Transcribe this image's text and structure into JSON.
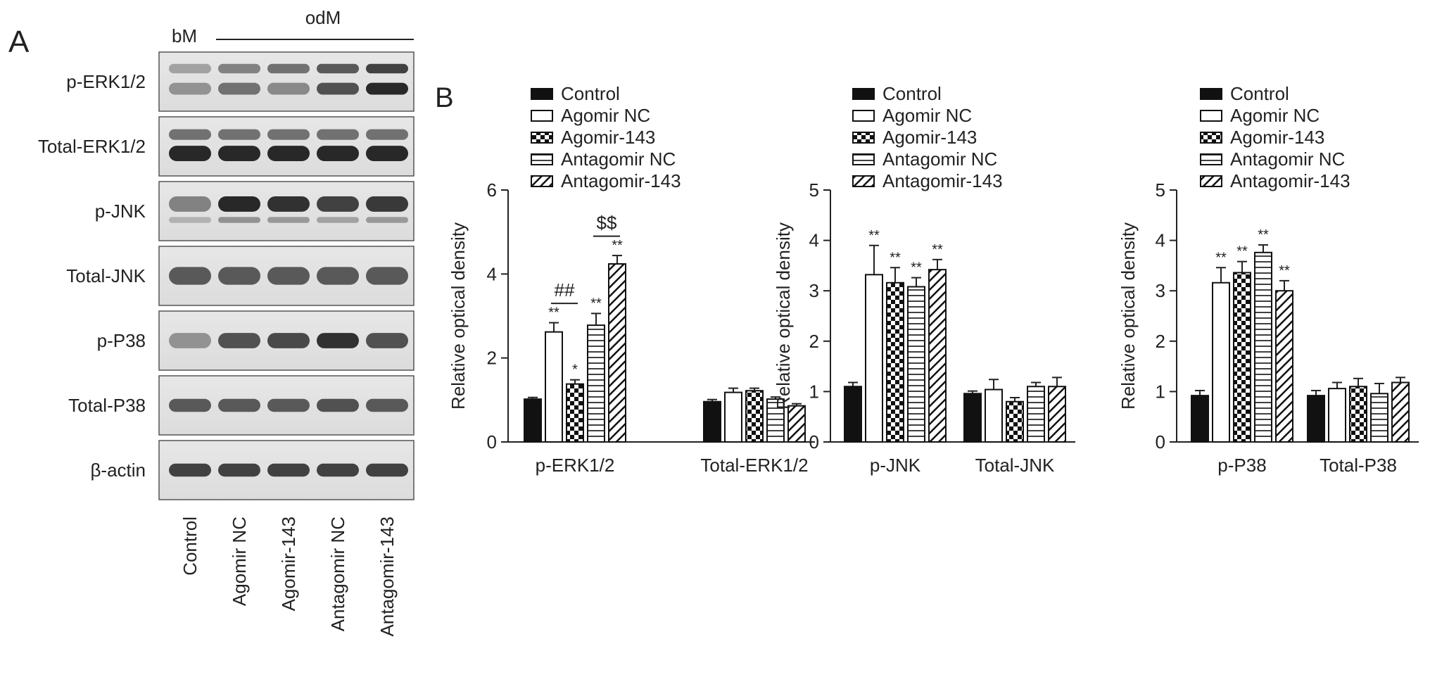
{
  "panel_a": {
    "label": "A",
    "header_single": "bM",
    "header_group": "odM",
    "rows": [
      "p-ERK1/2",
      "Total-ERK1/2",
      "p-JNK",
      "Total-JNK",
      "p-P38",
      "Total-P38",
      "β-actin"
    ],
    "lanes": [
      "Control",
      "Agomir NC",
      "Agomir-143",
      "Antagomir NC",
      "Antagomir-143"
    ]
  },
  "panel_b_label": "B",
  "chart_data": [
    {
      "type": "bar",
      "ylabel": "Relative optical density",
      "ylim": [
        0,
        6
      ],
      "yticks": [
        "0",
        "2",
        "4",
        "6"
      ],
      "categories": [
        "p-ERK1/2",
        "Total-ERK1/2"
      ],
      "series": [
        {
          "name": "Control",
          "values": [
            1.02,
            0.96
          ],
          "errors": [
            0.04,
            0.05
          ],
          "pattern": "solid",
          "sig": [
            "",
            ""
          ]
        },
        {
          "name": "Agomir NC",
          "values": [
            2.62,
            1.18
          ],
          "errors": [
            0.22,
            0.1
          ],
          "pattern": "open",
          "sig": [
            "**",
            ""
          ]
        },
        {
          "name": "Agomir-143",
          "values": [
            1.38,
            1.22
          ],
          "errors": [
            0.1,
            0.06
          ],
          "pattern": "checker",
          "sig": [
            "*",
            ""
          ]
        },
        {
          "name": "Antagomir NC",
          "values": [
            2.78,
            1.02
          ],
          "errors": [
            0.28,
            0.05
          ],
          "pattern": "hlines",
          "sig": [
            "**",
            ""
          ]
        },
        {
          "name": "Antagomir-143",
          "values": [
            4.24,
            0.86
          ],
          "errors": [
            0.2,
            0.05
          ],
          "pattern": "diag",
          "sig": [
            "**",
            ""
          ]
        }
      ],
      "comparisons": [
        {
          "label": "##",
          "from": 1,
          "to": 2,
          "y": 3.3
        },
        {
          "label": "$$",
          "from": 3,
          "to": 4,
          "y": 4.9
        }
      ]
    },
    {
      "type": "bar",
      "ylabel": "Relative optical density",
      "ylim": [
        0,
        5
      ],
      "yticks": [
        "0",
        "1",
        "2",
        "3",
        "4",
        "5"
      ],
      "categories": [
        "p-JNK",
        "Total-JNK"
      ],
      "series": [
        {
          "name": "Control",
          "values": [
            1.1,
            0.96
          ],
          "errors": [
            0.08,
            0.05
          ],
          "pattern": "solid",
          "sig": [
            "",
            ""
          ]
        },
        {
          "name": "Agomir NC",
          "values": [
            3.32,
            1.04
          ],
          "errors": [
            0.58,
            0.2
          ],
          "pattern": "open",
          "sig": [
            "**",
            ""
          ]
        },
        {
          "name": "Agomir-143",
          "values": [
            3.16,
            0.8
          ],
          "errors": [
            0.3,
            0.08
          ],
          "pattern": "checker",
          "sig": [
            "**",
            ""
          ]
        },
        {
          "name": "Antagomir NC",
          "values": [
            3.08,
            1.1
          ],
          "errors": [
            0.18,
            0.08
          ],
          "pattern": "hlines",
          "sig": [
            "**",
            ""
          ]
        },
        {
          "name": "Antagomir-143",
          "values": [
            3.42,
            1.1
          ],
          "errors": [
            0.2,
            0.18
          ],
          "pattern": "diag",
          "sig": [
            "**",
            ""
          ]
        }
      ],
      "comparisons": []
    },
    {
      "type": "bar",
      "ylabel": "Relative optical density",
      "ylim": [
        0,
        5
      ],
      "yticks": [
        "0",
        "1",
        "2",
        "3",
        "4",
        "5"
      ],
      "categories": [
        "p-P38",
        "Total-P38"
      ],
      "series": [
        {
          "name": "Control",
          "values": [
            0.92,
            0.92
          ],
          "errors": [
            0.1,
            0.1
          ],
          "pattern": "solid",
          "sig": [
            "",
            ""
          ]
        },
        {
          "name": "Agomir NC",
          "values": [
            3.16,
            1.06
          ],
          "errors": [
            0.3,
            0.12
          ],
          "pattern": "open",
          "sig": [
            "**",
            ""
          ]
        },
        {
          "name": "Agomir-143",
          "values": [
            3.36,
            1.1
          ],
          "errors": [
            0.22,
            0.16
          ],
          "pattern": "checker",
          "sig": [
            "**",
            ""
          ]
        },
        {
          "name": "Antagomir NC",
          "values": [
            3.76,
            0.96
          ],
          "errors": [
            0.15,
            0.2
          ],
          "pattern": "hlines",
          "sig": [
            "**",
            ""
          ]
        },
        {
          "name": "Antagomir-143",
          "values": [
            3.0,
            1.18
          ],
          "errors": [
            0.2,
            0.1
          ],
          "pattern": "diag",
          "sig": [
            "**",
            ""
          ]
        }
      ],
      "comparisons": []
    }
  ]
}
